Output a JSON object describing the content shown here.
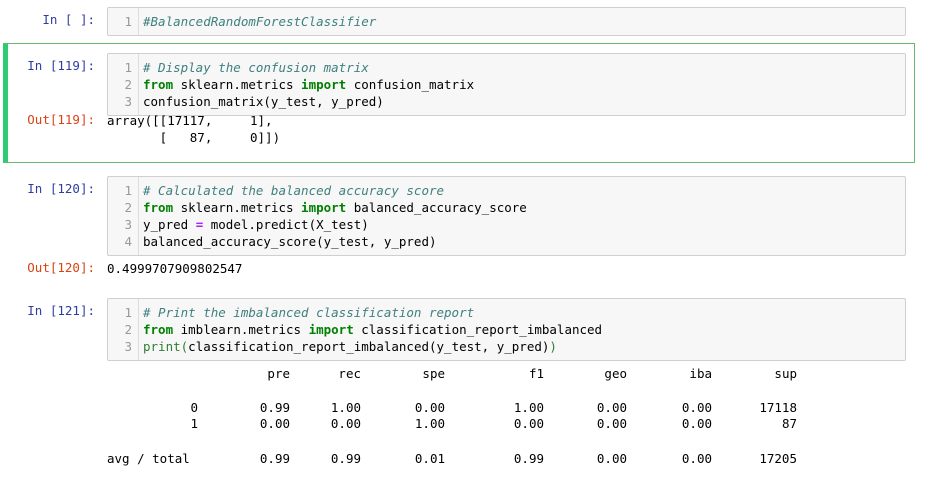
{
  "cells": [
    {
      "prompt": "In [ ]:",
      "lines": [
        {
          "n": "1",
          "parts": [
            {
              "t": "#BalancedRandomForestClassifier",
              "c": "cm"
            }
          ]
        }
      ]
    },
    {
      "prompt": "In [119]:",
      "lines": [
        {
          "n": "1",
          "parts": [
            {
              "t": "# Display the confusion matrix",
              "c": "cm"
            }
          ]
        },
        {
          "n": "2",
          "parts": [
            {
              "t": "from",
              "c": "kw"
            },
            {
              "t": " sklearn.metrics ",
              "c": ""
            },
            {
              "t": "import",
              "c": "kw"
            },
            {
              "t": " confusion_matrix",
              "c": ""
            }
          ]
        },
        {
          "n": "3",
          "parts": [
            {
              "t": "confusion_matrix(y_test, y_pred)",
              "c": ""
            }
          ]
        }
      ],
      "out_prompt": "Out[119]:",
      "output": "array([[17117,     1],\n       [   87,     0]])"
    },
    {
      "prompt": "In [120]:",
      "lines": [
        {
          "n": "1",
          "parts": [
            {
              "t": "# Calculated the balanced accuracy score",
              "c": "cm"
            }
          ]
        },
        {
          "n": "2",
          "parts": [
            {
              "t": "from",
              "c": "kw"
            },
            {
              "t": " sklearn.metrics ",
              "c": ""
            },
            {
              "t": "import",
              "c": "kw"
            },
            {
              "t": " balanced_accuracy_score",
              "c": ""
            }
          ]
        },
        {
          "n": "3",
          "parts": [
            {
              "t": "y_pred ",
              "c": ""
            },
            {
              "t": "=",
              "c": "op"
            },
            {
              "t": " model.predict(X_test)",
              "c": ""
            }
          ]
        },
        {
          "n": "4",
          "parts": [
            {
              "t": "balanced_accuracy_score(y_test, y_pred)",
              "c": ""
            }
          ]
        }
      ],
      "out_prompt": "Out[120]:",
      "output": "0.4999707909802547"
    },
    {
      "prompt": "In [121]:",
      "lines": [
        {
          "n": "1",
          "parts": [
            {
              "t": "# Print the imbalanced classification report",
              "c": "cm"
            }
          ]
        },
        {
          "n": "2",
          "parts": [
            {
              "t": "from",
              "c": "kw"
            },
            {
              "t": " imblearn.metrics ",
              "c": ""
            },
            {
              "t": "import",
              "c": "kw"
            },
            {
              "t": " classification_report_imbalanced",
              "c": ""
            }
          ]
        },
        {
          "n": "3",
          "parts": [
            {
              "t": "print",
              "c": "par"
            },
            {
              "t": "(",
              "c": "par"
            },
            {
              "t": "classification_report_imbalanced(y_test, y_pred)",
              "c": ""
            },
            {
              "t": ")",
              "c": "par"
            }
          ]
        }
      ]
    }
  ],
  "report": {
    "headers": [
      "pre",
      "rec",
      "spe",
      "f1",
      "geo",
      "iba",
      "sup"
    ],
    "rows": [
      {
        "label": "0",
        "values": [
          "0.99",
          "1.00",
          "0.00",
          "1.00",
          "0.00",
          "0.00",
          "17118"
        ]
      },
      {
        "label": "1",
        "values": [
          "0.00",
          "0.00",
          "1.00",
          "0.00",
          "0.00",
          "0.00",
          "87"
        ]
      },
      {
        "label": "avg / total",
        "values": [
          "0.99",
          "0.99",
          "0.01",
          "0.99",
          "0.00",
          "0.00",
          "17205"
        ]
      }
    ]
  }
}
